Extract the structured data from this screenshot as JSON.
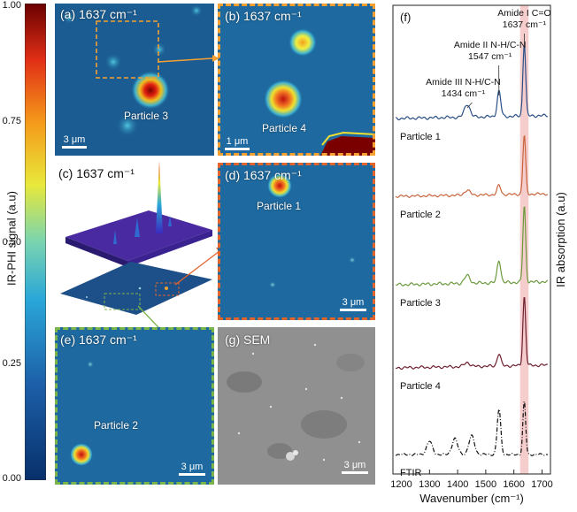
{
  "colorbar": {
    "label": "IR-PHI signal (a.u)",
    "ticks": [
      "1.00",
      "0.75",
      "0.50",
      "0.25",
      "0.00"
    ]
  },
  "panels": {
    "a": {
      "label": "(a) 1637 cm⁻¹",
      "particle": "Particle 3",
      "scale": "3 μm"
    },
    "b": {
      "label": "(b) 1637 cm⁻¹",
      "particle": "Particle 4",
      "scale": "1 μm"
    },
    "c": {
      "label": "(c) 1637 cm⁻¹"
    },
    "d": {
      "label": "(d) 1637 cm⁻¹",
      "particle": "Particle 1",
      "scale": "3 μm"
    },
    "e": {
      "label": "(e) 1637 cm⁻¹",
      "particle": "Particle 2",
      "scale": "3 μm"
    },
    "g": {
      "label": "(g) SEM",
      "scale": "3 μm"
    }
  },
  "chart_data": {
    "type": "line",
    "title": "(f)",
    "xlabel": "Wavenumber (cm⁻¹)",
    "ylabel": "IR absorption (a.u)",
    "xlim": [
      1170,
      1730
    ],
    "xticks": [
      1200,
      1300,
      1400,
      1500,
      1600,
      1700
    ],
    "highlight_band": [
      1622,
      1652
    ],
    "annotations": [
      {
        "text": "Amide I C=O\n1637 cm⁻¹",
        "x": 1637
      },
      {
        "text": "Amide II N-H/C-N\n1547 cm⁻¹",
        "x": 1547
      },
      {
        "text": "Amide III N-H/C-N\n1434 cm⁻¹",
        "x": 1434
      }
    ],
    "series": [
      {
        "name": "Particle 1",
        "color": "#2a4f86",
        "peaks": [
          [
            1434,
            0.18
          ],
          [
            1547,
            0.35
          ],
          [
            1637,
            1.0
          ]
        ]
      },
      {
        "name": "Particle 2",
        "color": "#c8643c",
        "peaks": [
          [
            1434,
            0.08
          ],
          [
            1547,
            0.15
          ],
          [
            1637,
            0.95
          ]
        ]
      },
      {
        "name": "Particle 3",
        "color": "#6a9a3c",
        "peaks": [
          [
            1434,
            0.1
          ],
          [
            1547,
            0.3
          ],
          [
            1637,
            1.0
          ]
        ]
      },
      {
        "name": "Particle 4",
        "color": "#6e2030",
        "peaks": [
          [
            1434,
            0.06
          ],
          [
            1547,
            0.18
          ],
          [
            1637,
            1.0
          ]
        ]
      },
      {
        "name": "FTIR",
        "color": "#111111",
        "dash": true,
        "peaks": [
          [
            1300,
            0.25
          ],
          [
            1390,
            0.3
          ],
          [
            1450,
            0.35
          ],
          [
            1547,
            0.85
          ],
          [
            1637,
            1.0
          ]
        ]
      }
    ]
  }
}
